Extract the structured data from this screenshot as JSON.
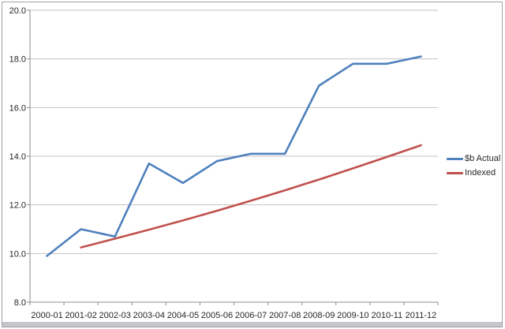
{
  "window": {
    "background": "#ffffff",
    "frame_border_color": "#a2a2a2",
    "bottom_strip_color": "#c5c6c9"
  },
  "colors": {
    "gridline": "#c2c2c2",
    "axis": "#8e8e8e",
    "tick": "#8e8e8e",
    "label_text": "#262626",
    "series_actual": "#4f81bd",
    "series_indexed": "#c0504d"
  },
  "chart_data": {
    "type": "line",
    "title": "",
    "xlabel": "",
    "ylabel": "",
    "grid": true,
    "legend_position": "right",
    "categories": [
      "2000-01",
      "2001-02",
      "2002-03",
      "2003-04",
      "2004-05",
      "2005-06",
      "2006-07",
      "2007-08",
      "2008-09",
      "2009-10",
      "2010-11",
      "2011-12"
    ],
    "series": [
      {
        "name": "$b Actual",
        "color": "#4f81bd",
        "values": [
          9.9,
          11.0,
          10.7,
          13.7,
          12.9,
          13.8,
          14.1,
          14.1,
          16.9,
          17.8,
          17.8,
          18.1
        ]
      },
      {
        "name": "Indexed",
        "color": "#c0504d",
        "values": [
          null,
          10.25,
          10.61,
          10.98,
          11.36,
          11.76,
          12.17,
          12.6,
          13.04,
          13.5,
          13.97,
          14.45
        ]
      }
    ],
    "ylim": [
      8.0,
      20.0
    ],
    "ytick_step": 2.0,
    "ytick_labels": [
      "8.0",
      "10.0",
      "12.0",
      "14.0",
      "16.0",
      "18.0",
      "20.0"
    ]
  }
}
